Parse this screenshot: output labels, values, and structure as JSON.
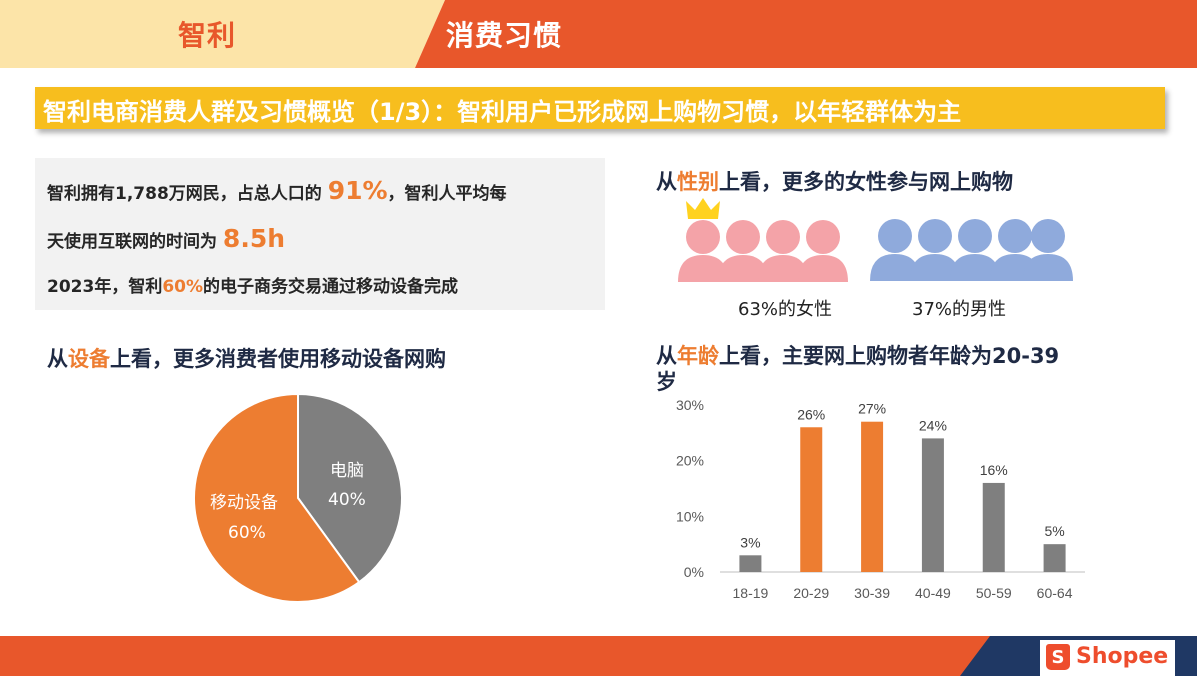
{
  "header": {
    "tab_left": "智利",
    "tab_right": "消费习惯"
  },
  "banner": {
    "title": "智利电商消费人群及习惯概览（1/3）：智利用户已形成网上购物习惯，以年轻群体为主"
  },
  "info": {
    "line1_a": "智利拥有1,788万网民，占总人口的 ",
    "line1_b": "91%",
    "line1_c": "，智利人平均每",
    "line2_a": "天使用互联网的时间为 ",
    "line2_b": "8.5h",
    "line3_a": "2023年，智利",
    "line3_b": "60%",
    "line3_c": "的电子商务交易通过移动设备完成"
  },
  "device": {
    "title_a": "从",
    "title_b": "设备",
    "title_c": "上看，更多消费者使用移动设备网购"
  },
  "gender": {
    "title_a": "从",
    "title_b": "性别",
    "title_c": "上看，更多的女性参与网上购物",
    "female_label": "63%的女性",
    "male_label": "37%的男性"
  },
  "age": {
    "title_a": "从",
    "title_b": "年龄",
    "title_c": "上看，主要网上购物者年龄为20-39",
    "title_d": "岁"
  },
  "colors": {
    "orange": "#ed7d31",
    "gray": "#7f7f7f",
    "female": "#f4a3a8",
    "male": "#8faadc",
    "banner": "#f7be1e",
    "header_red": "#e8572b"
  },
  "brand": {
    "logo_text": "Shopee",
    "logo_icon": "shopee-bag-icon"
  },
  "chart_data": [
    {
      "type": "pie",
      "labels": [
        "电脑",
        "移动设备"
      ],
      "values": [
        40,
        60
      ],
      "value_labels": [
        "40%",
        "60%"
      ]
    },
    {
      "type": "bar",
      "categories": [
        "18-19",
        "20-29",
        "30-39",
        "40-49",
        "50-59",
        "60-64"
      ],
      "values": [
        3,
        26,
        27,
        24,
        16,
        5
      ],
      "value_labels": [
        "3%",
        "26%",
        "27%",
        "24%",
        "16%",
        "5%"
      ],
      "highlight": [
        false,
        true,
        true,
        false,
        false,
        false
      ],
      "yticks": [
        "0%",
        "10%",
        "20%",
        "30%"
      ],
      "ylim": [
        0,
        30
      ]
    }
  ]
}
